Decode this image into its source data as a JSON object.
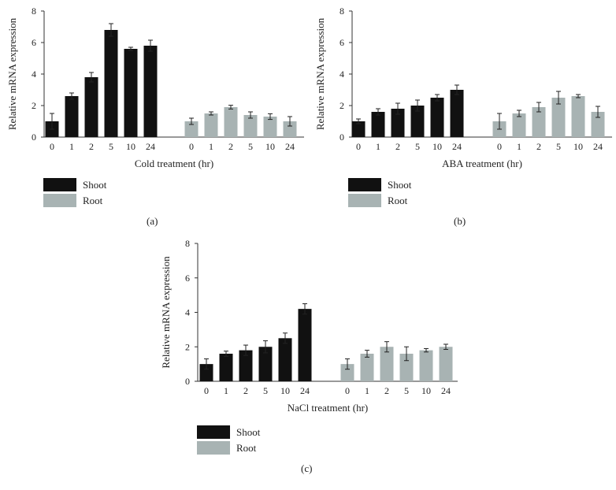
{
  "colors": {
    "shoot": "#111111",
    "root": "#a8b3b3",
    "axis": "#333333",
    "error": "#222222"
  },
  "legend": {
    "shoot": "Shoot",
    "root": "Root"
  },
  "chart_data": [
    {
      "type": "bar",
      "panel_label": "(a)",
      "xlabel": "Cold treatment (hr)",
      "ylabel": "Relative mRNA expression",
      "ylim": [
        0,
        8
      ],
      "yticks": [
        0,
        2,
        4,
        6,
        8
      ],
      "categories": [
        "0",
        "1",
        "2",
        "5",
        "10",
        "24"
      ],
      "grid": false,
      "series": [
        {
          "name": "Shoot",
          "values": [
            1.0,
            2.6,
            3.8,
            6.8,
            5.6,
            5.8
          ],
          "errors": [
            0.5,
            0.2,
            0.3,
            0.4,
            0.1,
            0.35
          ]
        },
        {
          "name": "Root",
          "values": [
            1.0,
            1.5,
            1.9,
            1.4,
            1.3,
            1.0
          ],
          "errors": [
            0.2,
            0.1,
            0.12,
            0.2,
            0.18,
            0.3
          ]
        }
      ]
    },
    {
      "type": "bar",
      "panel_label": "(b)",
      "xlabel": "ABA treatment (hr)",
      "ylabel": "Relative mRNA expression",
      "ylim": [
        0,
        8
      ],
      "yticks": [
        0,
        2,
        4,
        6,
        8
      ],
      "categories": [
        "0",
        "1",
        "2",
        "5",
        "10",
        "24"
      ],
      "grid": false,
      "series": [
        {
          "name": "Shoot",
          "values": [
            1.0,
            1.6,
            1.8,
            2.0,
            2.5,
            3.0
          ],
          "errors": [
            0.15,
            0.2,
            0.35,
            0.35,
            0.2,
            0.3
          ]
        },
        {
          "name": "Root",
          "values": [
            1.0,
            1.5,
            1.9,
            2.5,
            2.6,
            1.6
          ],
          "errors": [
            0.5,
            0.2,
            0.3,
            0.4,
            0.1,
            0.35
          ]
        }
      ]
    },
    {
      "type": "bar",
      "panel_label": "(c)",
      "xlabel": "NaCl treatment (hr)",
      "ylabel": "Relative mRNA expression",
      "ylim": [
        0,
        8
      ],
      "yticks": [
        0,
        2,
        4,
        6,
        8
      ],
      "categories": [
        "0",
        "1",
        "2",
        "5",
        "10",
        "24"
      ],
      "grid": false,
      "series": [
        {
          "name": "Shoot",
          "values": [
            1.0,
            1.6,
            1.8,
            2.0,
            2.5,
            4.2
          ],
          "errors": [
            0.3,
            0.15,
            0.3,
            0.35,
            0.3,
            0.3
          ]
        },
        {
          "name": "Root",
          "values": [
            1.0,
            1.6,
            2.0,
            1.6,
            1.8,
            2.0
          ],
          "errors": [
            0.3,
            0.2,
            0.3,
            0.4,
            0.1,
            0.15
          ]
        }
      ]
    }
  ]
}
